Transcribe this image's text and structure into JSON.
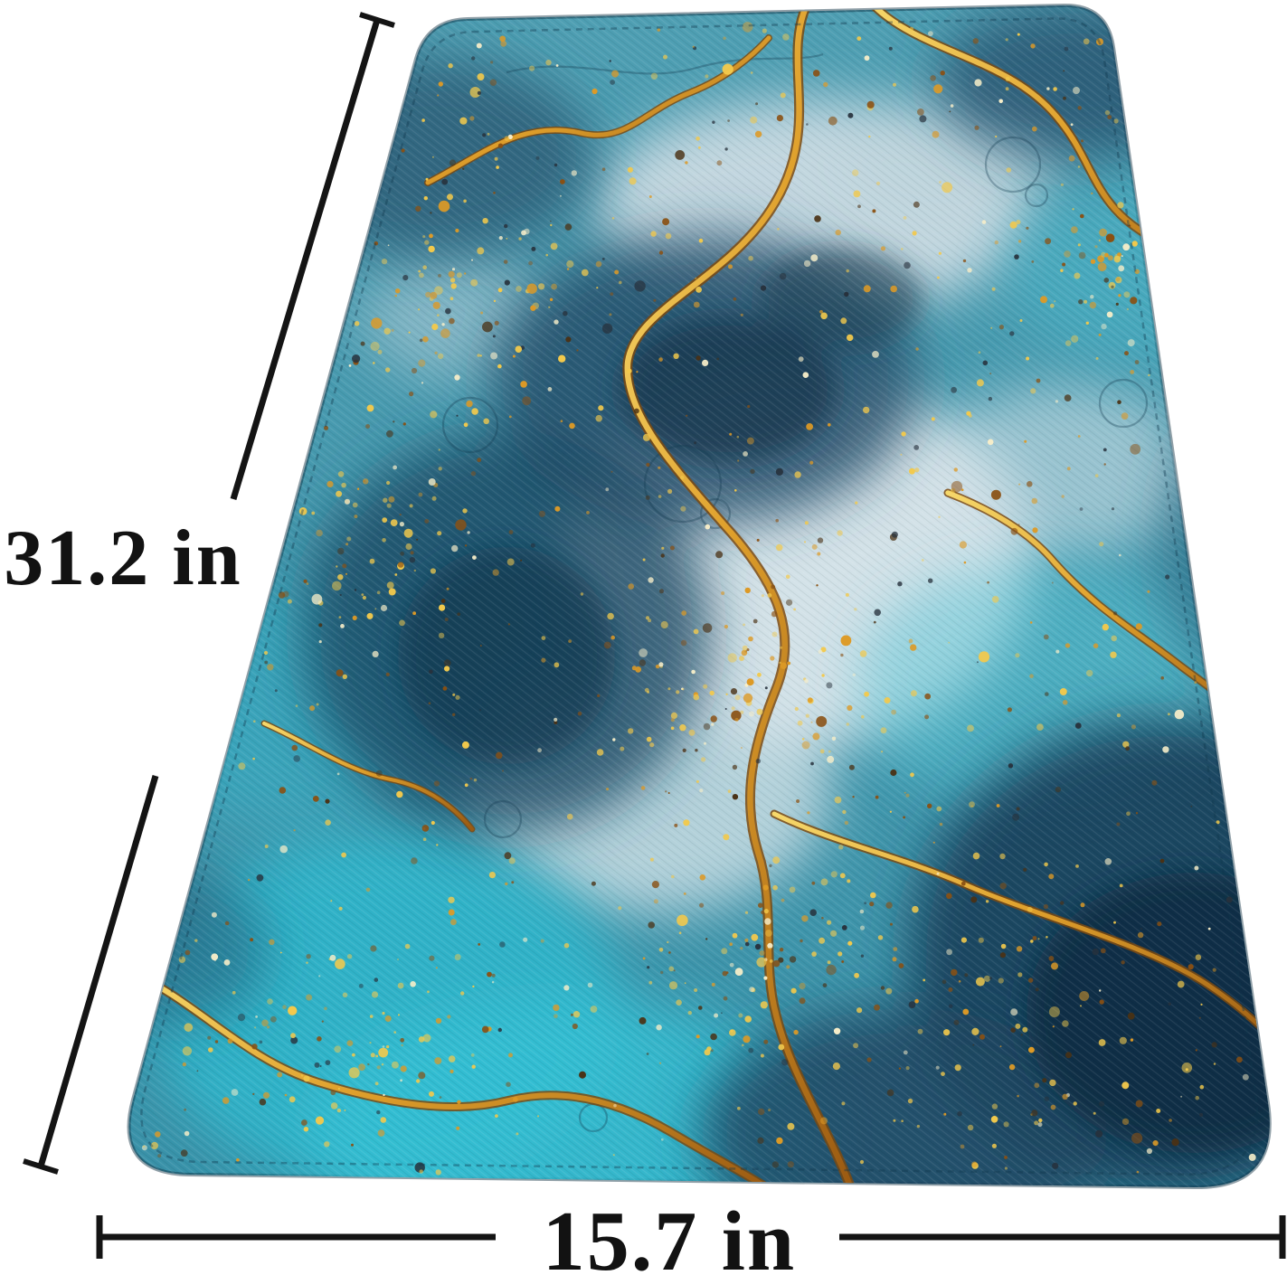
{
  "image": {
    "type": "product-photo",
    "background_color": "#ffffff",
    "product_name": "blue-gold-marble-mat"
  },
  "annotations": {
    "line_color": "#141414",
    "height": {
      "label": "31.2 in"
    },
    "width": {
      "label": "15.7 in"
    }
  },
  "palette": {
    "teal_base": "#4499af",
    "teal_bright": "#31bcd1",
    "navy": "#1d4763",
    "navy_deep": "#132e45",
    "light_wash": "#d8e4e9",
    "gold_light": "#f2c94c",
    "gold": "#dd9a26",
    "gold_dark": "#8a5012",
    "umber": "#4a3114",
    "ink_speck": "#27313c",
    "cream_speck": "#f7eec9"
  }
}
